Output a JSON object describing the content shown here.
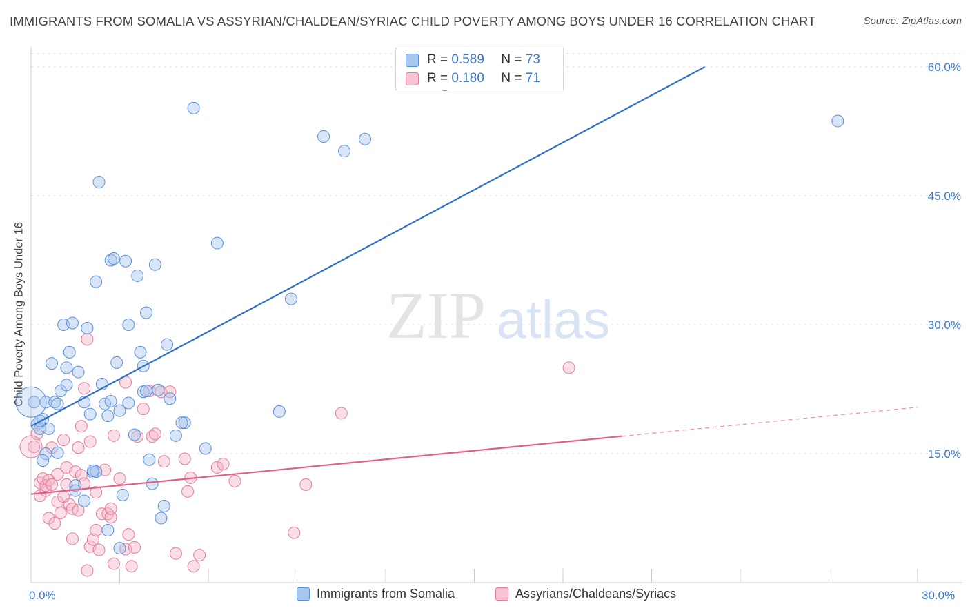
{
  "title": "IMMIGRANTS FROM SOMALIA VS ASSYRIAN/CHALDEAN/SYRIAC CHILD POVERTY AMONG BOYS UNDER 16 CORRELATION CHART",
  "source": "Source: ZipAtlas.com",
  "watermark": {
    "zip": "ZIP",
    "atlas": "atlas"
  },
  "legend_top": {
    "r_label": "R =",
    "n_label": "N =",
    "series": [
      {
        "r": "0.589",
        "n": "73"
      },
      {
        "r": "0.180",
        "n": "71"
      }
    ]
  },
  "colors": {
    "blue_fill": "#a9c6ee",
    "blue_stroke": "#5b8fd6",
    "blue_line": "#2f6fcc",
    "pink_fill": "#f5b6c8",
    "pink_stroke": "#e07c9a",
    "pink_line": "#e0608a",
    "grid": "#e2e2e2",
    "axis_text": "#3a78cc"
  },
  "chart_data": {
    "type": "scatter",
    "title": "IMMIGRANTS FROM SOMALIA VS ASSYRIAN/CHALDEAN/SYRIAC CHILD POVERTY AMONG BOYS UNDER 16 CORRELATION CHART",
    "xlabel": "",
    "ylabel": "Child Poverty Among Boys Under 16",
    "xlim": [
      0,
      30
    ],
    "ylim": [
      0,
      60
    ],
    "x_tick_labels": [
      "0.0%",
      "30.0%"
    ],
    "y_tick_labels": [
      "15.0%",
      "30.0%",
      "45.0%",
      "60.0%"
    ],
    "y_ticks": [
      15,
      30,
      45,
      60
    ],
    "grid": true,
    "legend_position": "top-center",
    "series": [
      {
        "name": "Immigrants from Somalia",
        "r": 0.589,
        "n": 73,
        "trend": {
          "x": [
            0,
            22.8
          ],
          "y": [
            18.2,
            60.0
          ],
          "solid_to": 22.8
        },
        "points": [
          [
            0.1,
            21.0
          ],
          [
            0.2,
            18.4
          ],
          [
            0.3,
            17.9
          ],
          [
            0.4,
            19.0
          ],
          [
            0.5,
            21.0
          ],
          [
            0.5,
            15.0
          ],
          [
            0.6,
            17.9
          ],
          [
            0.4,
            14.2
          ],
          [
            0.8,
            21.0
          ],
          [
            0.9,
            15.1
          ],
          [
            1.0,
            22.3
          ],
          [
            1.1,
            30.0
          ],
          [
            1.2,
            23.0
          ],
          [
            1.2,
            25.0
          ],
          [
            1.3,
            26.8
          ],
          [
            1.4,
            30.2
          ],
          [
            0.7,
            25.5
          ],
          [
            1.5,
            11.3
          ],
          [
            1.6,
            24.5
          ],
          [
            1.8,
            21.0
          ],
          [
            1.9,
            29.6
          ],
          [
            2.0,
            19.6
          ],
          [
            2.1,
            12.8
          ],
          [
            2.2,
            12.9
          ],
          [
            2.2,
            35.0
          ],
          [
            2.3,
            46.6
          ],
          [
            2.4,
            23.1
          ],
          [
            2.5,
            20.8
          ],
          [
            2.6,
            19.4
          ],
          [
            2.7,
            37.5
          ],
          [
            2.7,
            21.1
          ],
          [
            2.8,
            37.7
          ],
          [
            2.9,
            25.6
          ],
          [
            3.0,
            4.0
          ],
          [
            3.0,
            20.0
          ],
          [
            3.1,
            10.2
          ],
          [
            3.2,
            37.4
          ],
          [
            3.3,
            20.9
          ],
          [
            3.3,
            30.0
          ],
          [
            3.5,
            17.2
          ],
          [
            3.6,
            35.7
          ],
          [
            3.7,
            26.8
          ],
          [
            3.8,
            25.2
          ],
          [
            3.8,
            22.2
          ],
          [
            3.9,
            31.4
          ],
          [
            4.0,
            14.3
          ],
          [
            4.1,
            11.5
          ],
          [
            4.2,
            37.0
          ],
          [
            4.3,
            22.4
          ],
          [
            4.4,
            7.5
          ],
          [
            4.5,
            8.9
          ],
          [
            4.6,
            27.7
          ],
          [
            4.7,
            21.4
          ],
          [
            4.9,
            17.1
          ],
          [
            5.2,
            18.6
          ],
          [
            5.5,
            55.2
          ],
          [
            5.9,
            15.6
          ],
          [
            6.3,
            39.5
          ],
          [
            8.4,
            19.9
          ],
          [
            8.8,
            33.0
          ],
          [
            9.9,
            51.9
          ],
          [
            10.6,
            50.2
          ],
          [
            11.3,
            51.6
          ],
          [
            14.0,
            57.9
          ],
          [
            27.3,
            53.7
          ],
          [
            1.8,
            9.5
          ],
          [
            2.6,
            6.1
          ],
          [
            1.5,
            10.7
          ],
          [
            0.3,
            18.8
          ],
          [
            0.9,
            20.8
          ],
          [
            3.9,
            22.3
          ],
          [
            2.1,
            13.0
          ],
          [
            5.1,
            18.6
          ]
        ]
      },
      {
        "name": "Assyrians/Chaldeans/Syriacs",
        "r": 0.18,
        "n": 71,
        "trend": {
          "x": [
            0,
            30
          ],
          "y": [
            10.3,
            20.4
          ],
          "solid_to": 20.0
        },
        "points": [
          [
            0.1,
            15.8
          ],
          [
            0.2,
            17.3
          ],
          [
            0.3,
            10.1
          ],
          [
            0.3,
            11.6
          ],
          [
            0.4,
            12.1
          ],
          [
            0.5,
            10.7
          ],
          [
            0.5,
            11.3
          ],
          [
            0.6,
            11.9
          ],
          [
            0.6,
            7.5
          ],
          [
            0.7,
            11.4
          ],
          [
            0.7,
            15.7
          ],
          [
            0.8,
            6.9
          ],
          [
            0.9,
            9.4
          ],
          [
            0.9,
            12.6
          ],
          [
            1.0,
            8.1
          ],
          [
            1.1,
            16.6
          ],
          [
            1.1,
            10.0
          ],
          [
            1.2,
            11.4
          ],
          [
            1.2,
            13.4
          ],
          [
            1.3,
            9.1
          ],
          [
            1.4,
            8.6
          ],
          [
            1.4,
            5.1
          ],
          [
            1.5,
            12.9
          ],
          [
            1.6,
            8.4
          ],
          [
            1.6,
            15.7
          ],
          [
            1.7,
            12.5
          ],
          [
            1.7,
            18.2
          ],
          [
            1.8,
            11.5
          ],
          [
            1.8,
            22.6
          ],
          [
            1.9,
            28.3
          ],
          [
            1.9,
            1.4
          ],
          [
            2.0,
            4.2
          ],
          [
            2.0,
            16.4
          ],
          [
            2.1,
            5.0
          ],
          [
            2.2,
            10.5
          ],
          [
            2.2,
            6.1
          ],
          [
            2.3,
            3.8
          ],
          [
            2.4,
            8.0
          ],
          [
            2.5,
            13.1
          ],
          [
            2.6,
            8.0
          ],
          [
            2.7,
            7.6
          ],
          [
            2.7,
            8.6
          ],
          [
            2.8,
            2.2
          ],
          [
            2.8,
            17.1
          ],
          [
            3.0,
            12.1
          ],
          [
            3.2,
            3.9
          ],
          [
            3.2,
            23.3
          ],
          [
            3.3,
            5.6
          ],
          [
            3.4,
            1.9
          ],
          [
            3.5,
            4.1
          ],
          [
            3.6,
            17.0
          ],
          [
            3.8,
            20.2
          ],
          [
            4.0,
            22.3
          ],
          [
            4.1,
            17.0
          ],
          [
            4.2,
            17.3
          ],
          [
            4.4,
            22.2
          ],
          [
            4.5,
            14.1
          ],
          [
            4.7,
            22.2
          ],
          [
            4.9,
            3.4
          ],
          [
            5.2,
            14.4
          ],
          [
            5.3,
            10.6
          ],
          [
            5.4,
            12.2
          ],
          [
            5.5,
            1.9
          ],
          [
            5.7,
            3.2
          ],
          [
            6.3,
            13.4
          ],
          [
            6.5,
            13.8
          ],
          [
            6.9,
            11.8
          ],
          [
            8.9,
            5.8
          ],
          [
            9.3,
            11.4
          ],
          [
            10.5,
            19.7
          ],
          [
            18.2,
            25.0
          ]
        ]
      }
    ]
  },
  "legend_bottom": [
    {
      "label": "Immigrants from Somalia"
    },
    {
      "label": "Assyrians/Chaldeans/Syriacs"
    }
  ]
}
